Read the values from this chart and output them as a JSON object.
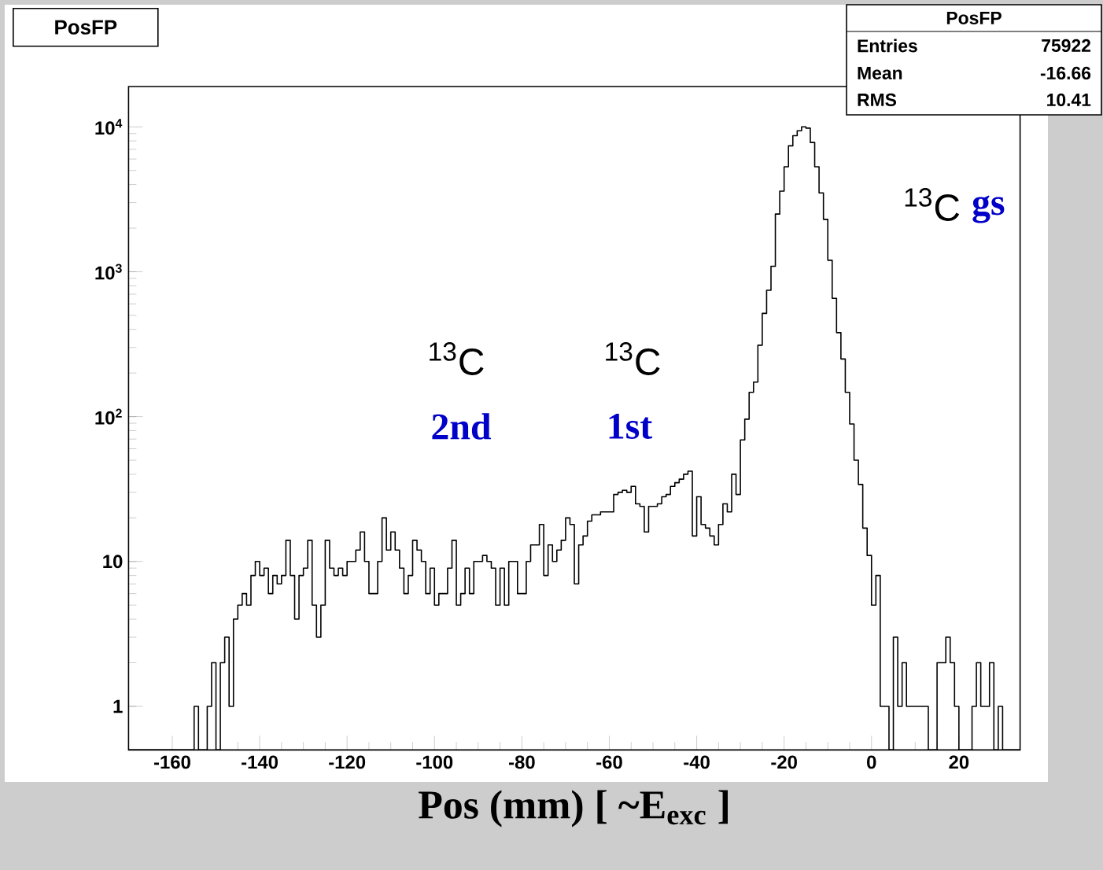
{
  "chart_data": {
    "type": "histogram",
    "title": "PosFP",
    "xlabel": "Pos (mm)   [ ~E$_{exc}$ ]",
    "color": "#000000",
    "log": true,
    "xlim": [
      -170,
      34
    ],
    "ylim": [
      0.5,
      19000
    ],
    "xticks": [
      -160,
      -140,
      -120,
      -100,
      -80,
      -60,
      -40,
      -20,
      0,
      20
    ],
    "yticks": [
      1,
      10,
      {
        "value": 100,
        "label": "10$^{2}$"
      },
      {
        "value": 1000,
        "label": "10$^{3}$"
      },
      {
        "value": 10000,
        "label": "10$^{4}$"
      }
    ],
    "bins": [
      -170,
      -169,
      -168,
      -167,
      -166,
      -165,
      -164,
      -163,
      -162,
      -161,
      -160,
      -159,
      -158,
      -157,
      -156,
      -155,
      -154,
      -153,
      -152,
      -151,
      -150,
      -149,
      -148,
      -147,
      -146,
      -145,
      -144,
      -143,
      -142,
      -141,
      -140,
      -139,
      -138,
      -137,
      -136,
      -135,
      -134,
      -133,
      -132,
      -131,
      -130,
      -129,
      -128,
      -127,
      -126,
      -125,
      -124,
      -123,
      -122,
      -121,
      -120,
      -119,
      -118,
      -117,
      -116,
      -115,
      -114,
      -113,
      -112,
      -111,
      -110,
      -109,
      -108,
      -107,
      -106,
      -105,
      -104,
      -103,
      -102,
      -101,
      -100,
      -99,
      -98,
      -97,
      -96,
      -95,
      -94,
      -93,
      -92,
      -91,
      -90,
      -89,
      -88,
      -87,
      -86,
      -85,
      -84,
      -83,
      -82,
      -81,
      -80,
      -79,
      -78,
      -77,
      -76,
      -75,
      -74,
      -73,
      -72,
      -71,
      -70,
      -69,
      -68,
      -67,
      -66,
      -65,
      -64,
      -63,
      -62,
      -61,
      -60,
      -59,
      -58,
      -57,
      -56,
      -55,
      -54,
      -53,
      -52,
      -51,
      -50,
      -49,
      -48,
      -47,
      -46,
      -45,
      -44,
      -43,
      -42,
      -41,
      -40,
      -39,
      -38,
      -37,
      -36,
      -35,
      -34,
      -33,
      -32,
      -31,
      -30,
      -29,
      -28,
      -27,
      -26,
      -25,
      -24,
      -23,
      -22,
      -21,
      -20,
      -19,
      -18,
      -17,
      -16,
      -15,
      -14,
      -13,
      -12,
      -11,
      -10,
      -9,
      -8,
      -7,
      -6,
      -5,
      -4,
      -3,
      -2,
      -1,
      0,
      1,
      2,
      3,
      4,
      5,
      6,
      7,
      8,
      9,
      10,
      11,
      12,
      13,
      14,
      15,
      16,
      17,
      18,
      19,
      20,
      21,
      22,
      23,
      24,
      25,
      26,
      27,
      28,
      29,
      30,
      31,
      32,
      33,
      34
    ],
    "values": [
      null,
      null,
      null,
      null,
      null,
      null,
      null,
      null,
      null,
      null,
      null,
      null,
      null,
      null,
      null,
      1,
      null,
      null,
      1,
      2,
      null,
      2,
      3,
      1,
      4,
      5,
      6,
      5,
      8,
      10,
      8,
      9,
      6,
      8,
      7,
      8,
      14,
      8,
      4,
      8,
      9,
      14,
      5,
      3,
      5,
      14,
      9,
      8,
      9,
      8,
      10,
      10,
      12,
      16,
      10,
      6,
      6,
      10,
      20,
      12,
      16,
      12,
      9,
      6,
      8,
      14,
      12,
      10,
      6,
      9,
      5,
      6,
      6,
      9,
      14,
      5,
      6,
      9,
      6,
      10,
      10,
      11,
      10,
      9,
      5,
      9,
      5,
      10,
      10,
      6,
      6,
      10,
      13,
      13,
      18,
      8,
      13,
      10,
      12,
      14,
      20,
      18,
      7,
      13,
      15,
      19,
      21,
      21,
      22,
      22,
      22,
      29,
      30,
      31,
      30,
      33,
      25,
      24,
      16,
      24,
      24,
      25,
      28,
      29,
      33,
      35,
      37,
      40,
      42,
      15,
      28,
      18,
      17,
      15,
      13,
      18,
      25,
      22,
      40,
      29,
      69,
      96,
      147,
      173,
      311,
      516,
      745,
      1090,
      2500,
      3600,
      5300,
      7400,
      8700,
      9400,
      10000,
      9800,
      7800,
      5300,
      3500,
      2300,
      1200,
      655,
      380,
      250,
      147,
      89,
      50,
      34,
      17,
      11,
      5,
      8,
      1,
      1,
      null,
      3,
      1,
      2,
      1,
      1,
      1,
      1,
      1,
      null,
      null,
      2,
      2,
      3,
      2,
      1,
      null,
      null,
      null,
      1,
      2,
      1,
      1,
      2,
      null,
      1,
      null,
      null,
      null,
      null
    ],
    "annotations": [
      "PosFP",
      "Entries",
      "75922",
      "Mean",
      "-16.66",
      "RMS",
      "10.41",
      "$^{13}$C",
      "2nd",
      "$^{13}$C",
      "1st",
      "$^{13}$C",
      "gs"
    ]
  }
}
